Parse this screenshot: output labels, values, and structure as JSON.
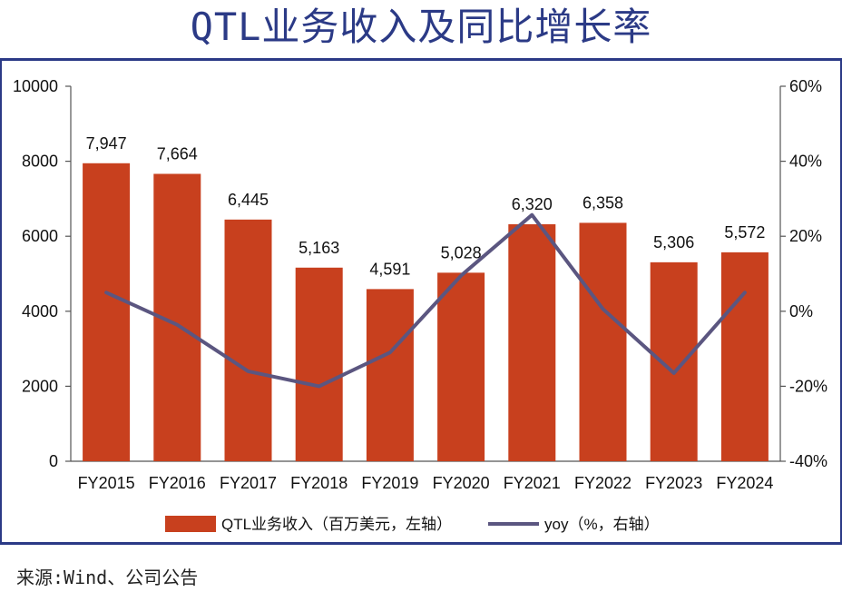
{
  "title": "QTL业务收入及同比增长率",
  "source": "来源:Wind、公司公告",
  "colors": {
    "bar": "#c8401e",
    "line": "#5b5680",
    "title": "#2b3a86",
    "axis": "#555555"
  },
  "chart_data": {
    "type": "bar",
    "categories": [
      "FY2015",
      "FY2016",
      "FY2017",
      "FY2018",
      "FY2019",
      "FY2020",
      "FY2021",
      "FY2022",
      "FY2023",
      "FY2024"
    ],
    "series": [
      {
        "name": "QTL业务收入（百万美元，左轴）",
        "type": "bar",
        "axis": "left",
        "values": [
          7947,
          7664,
          6445,
          5163,
          4591,
          5028,
          6320,
          6358,
          5306,
          5572
        ],
        "labels": [
          "7,947",
          "7,664",
          "6,445",
          "5,163",
          "4,591",
          "5,028",
          "6,320",
          "6,358",
          "5,306",
          "5,572"
        ]
      },
      {
        "name": "yoy（%，右轴）",
        "type": "line",
        "axis": "right",
        "values": [
          5,
          -3.6,
          -16,
          -20,
          -11,
          9.5,
          25.7,
          0.6,
          -16.5,
          5
        ]
      }
    ],
    "y_left": {
      "range": [
        0,
        10000
      ],
      "ticks": [
        "0",
        "2000",
        "4000",
        "6000",
        "8000",
        "10000"
      ]
    },
    "y_right": {
      "range": [
        -40,
        60
      ],
      "ticks": [
        "-40%",
        "-20%",
        "0%",
        "20%",
        "40%",
        "60%"
      ]
    },
    "grid": false,
    "legend_position": "bottom"
  }
}
